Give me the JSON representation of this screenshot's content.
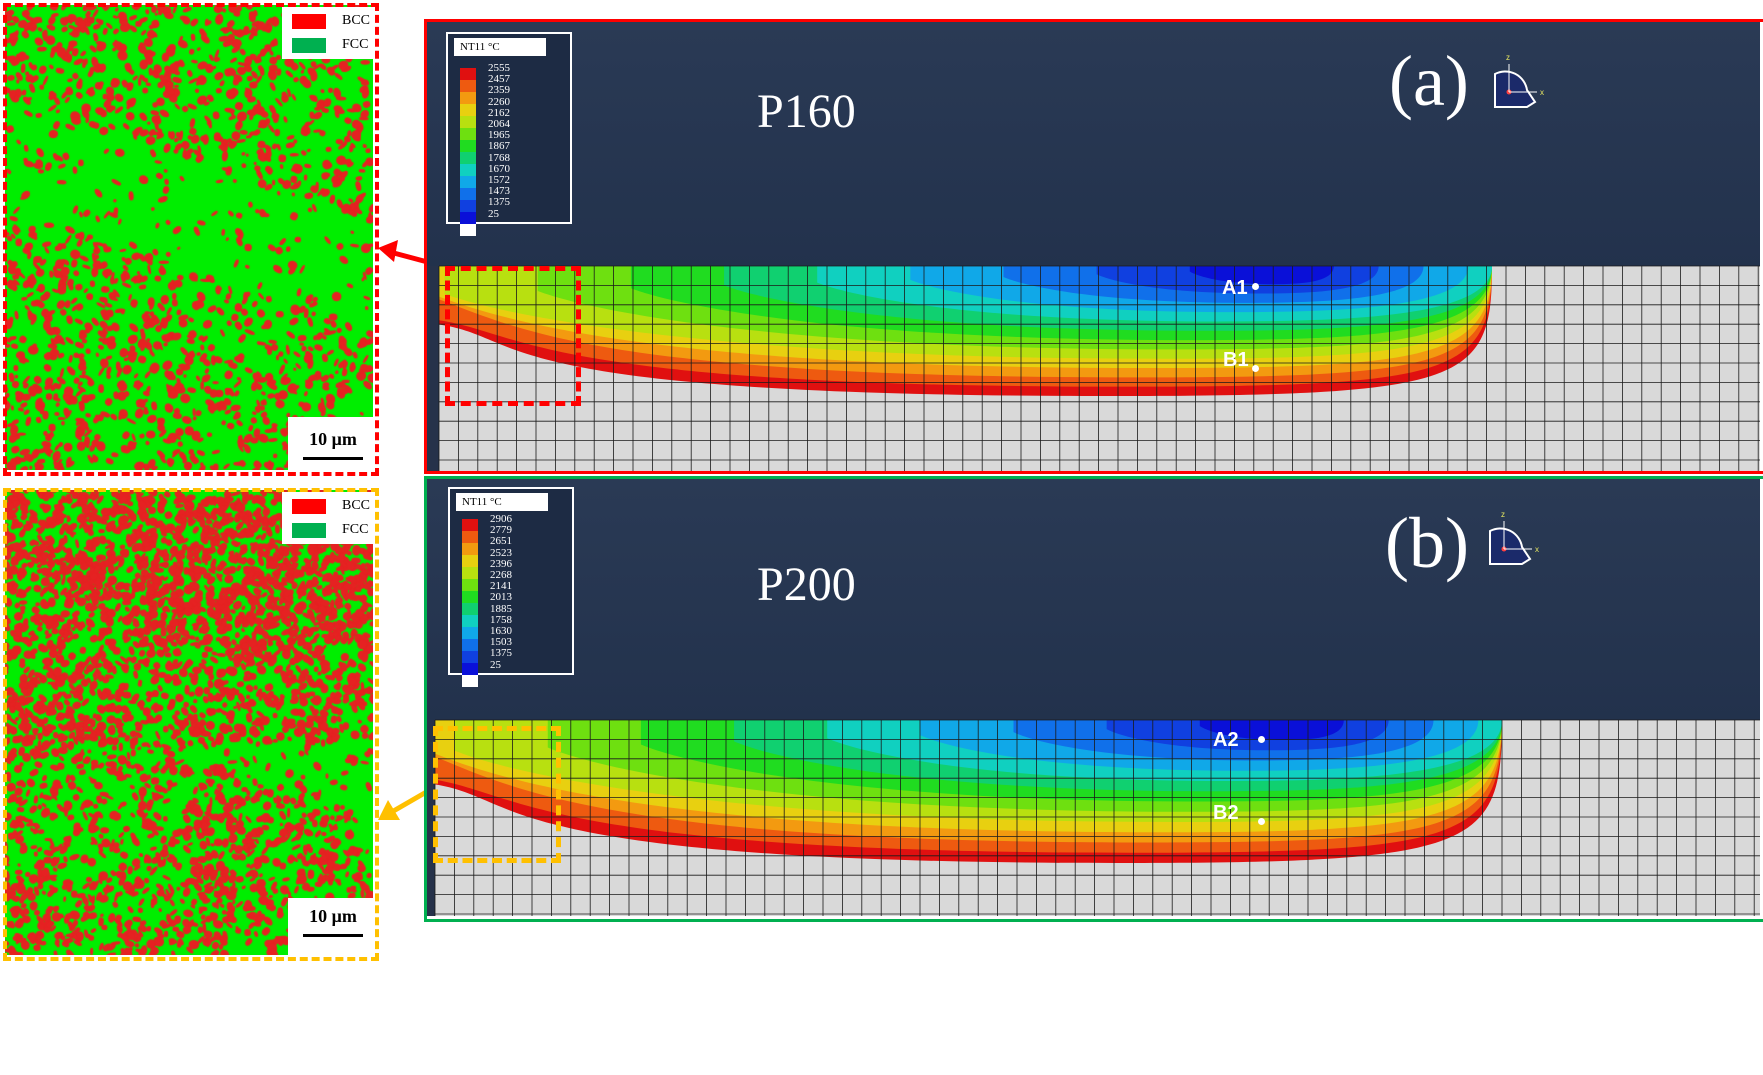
{
  "top_left_map": {
    "legend": [
      {
        "label": "BCC",
        "color": "#ff0000"
      },
      {
        "label": "FCC",
        "color": "#00b050"
      }
    ],
    "scale_bar": "10 μm",
    "frame_color": "#ff0000",
    "phase_colors": {
      "bcc": "#e52222",
      "fcc": "#00ee00"
    }
  },
  "bottom_left_map": {
    "legend": [
      {
        "label": "BCC",
        "color": "#ff0000"
      },
      {
        "label": "FCC",
        "color": "#00b050"
      }
    ],
    "scale_bar": "10 μm",
    "frame_color": "#ffc000",
    "phase_colors": {
      "bcc": "#e52222",
      "fcc": "#00ee00"
    }
  },
  "panel_a": {
    "letter": "(a)",
    "sample": "P160",
    "frame_color": "#ff0000",
    "colorbar_title": "NT11  °C",
    "colorbar_ticks": [
      "2555",
      "2457",
      "2359",
      "2260",
      "2162",
      "2064",
      "1965",
      "1867",
      "1768",
      "1670",
      "1572",
      "1473",
      "1375",
      "25"
    ],
    "points": [
      {
        "label": "A1"
      },
      {
        "label": "B1"
      }
    ],
    "axis_labels": {
      "z": "z",
      "x": "x"
    }
  },
  "panel_b": {
    "letter": "(b)",
    "sample": "P200",
    "frame_color": "#00b050",
    "colorbar_title": "NT11  °C",
    "colorbar_ticks": [
      "2906",
      "2779",
      "2651",
      "2523",
      "2396",
      "2268",
      "2141",
      "2013",
      "1885",
      "1758",
      "1630",
      "1503",
      "1375",
      "25"
    ],
    "points": [
      {
        "label": "A2"
      },
      {
        "label": "B2"
      }
    ],
    "axis_labels": {
      "z": "z",
      "x": "x"
    }
  },
  "colormap": [
    "#e01010",
    "#ee5a10",
    "#f39a10",
    "#e8d010",
    "#b8e010",
    "#6ee010",
    "#20dc20",
    "#10d070",
    "#10d0c0",
    "#10a8e8",
    "#1070ea",
    "#1040e0",
    "#0a10d8",
    "#ffffff"
  ]
}
